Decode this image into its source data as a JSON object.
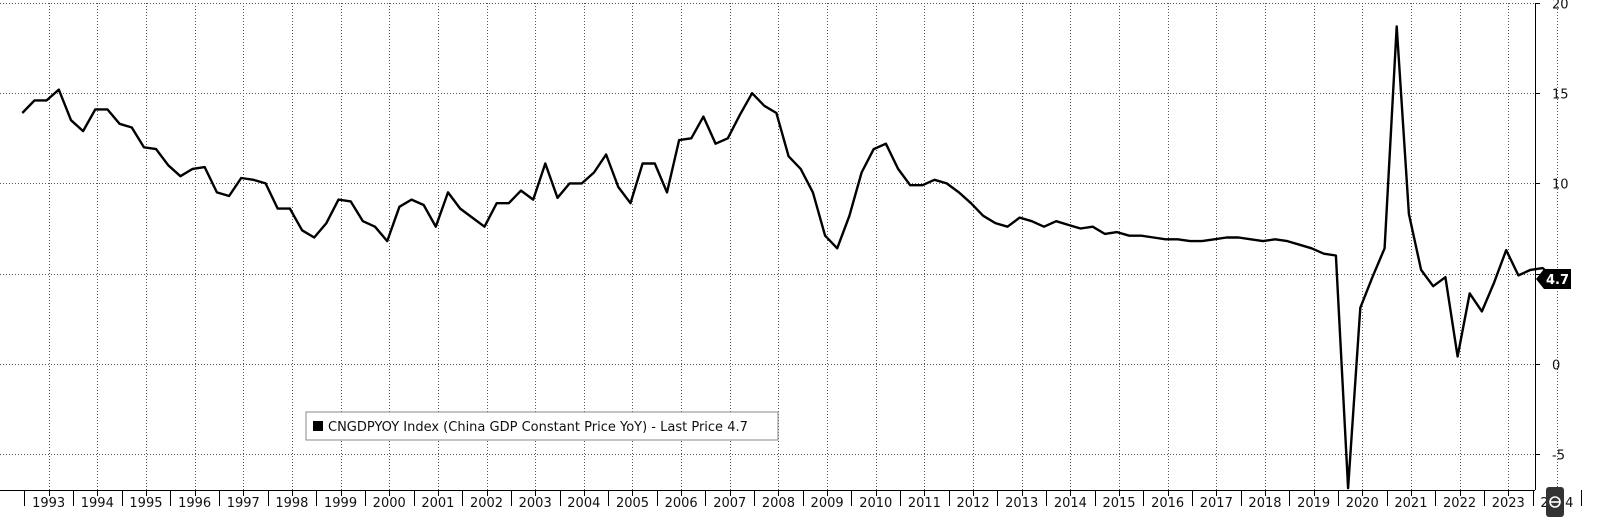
{
  "chart_data": {
    "type": "line",
    "legend": "CNGDPYOY Index (China GDP Constant Price YoY) - Last Price 4.7",
    "last_price_label": "4.7",
    "last_price": 4.7,
    "x_tick_labels": [
      "1993",
      "1994",
      "1995",
      "1996",
      "1997",
      "1998",
      "1999",
      "2000",
      "2001",
      "2002",
      "2003",
      "2004",
      "2005",
      "2006",
      "2007",
      "2008",
      "2009",
      "2010",
      "2011",
      "2012",
      "2013",
      "2014",
      "2015",
      "2016",
      "2017",
      "2018",
      "2019",
      "2020",
      "2021",
      "2022",
      "2023",
      "2024"
    ],
    "y_ticks": [
      20,
      15,
      10,
      5,
      0,
      -5
    ],
    "y_tick_labels": [
      "20",
      "15",
      "10",
      "",
      "0",
      "-5"
    ],
    "ylim": [
      -7,
      20
    ],
    "grid": true,
    "legend_position": "bottom-center",
    "line_color": "#000000",
    "series": [
      {
        "values": [
          [
            "1992-12",
            13.9
          ],
          [
            "1993-03",
            14.6
          ],
          [
            "1993-06",
            14.6
          ],
          [
            "1993-09",
            15.2
          ],
          [
            "1993-12",
            13.5
          ],
          [
            "1994-03",
            12.9
          ],
          [
            "1994-06",
            14.1
          ],
          [
            "1994-09",
            14.1
          ],
          [
            "1994-12",
            13.3
          ],
          [
            "1995-03",
            13.1
          ],
          [
            "1995-06",
            12.0
          ],
          [
            "1995-09",
            11.9
          ],
          [
            "1995-12",
            11.0
          ],
          [
            "1996-03",
            10.4
          ],
          [
            "1996-06",
            10.8
          ],
          [
            "1996-09",
            10.9
          ],
          [
            "1996-12",
            9.5
          ],
          [
            "1997-03",
            9.3
          ],
          [
            "1997-06",
            10.3
          ],
          [
            "1997-09",
            10.2
          ],
          [
            "1997-12",
            10.0
          ],
          [
            "1998-03",
            8.6
          ],
          [
            "1998-06",
            8.6
          ],
          [
            "1998-09",
            7.4
          ],
          [
            "1998-12",
            7.0
          ],
          [
            "1999-03",
            7.8
          ],
          [
            "1999-06",
            9.1
          ],
          [
            "1999-09",
            9.0
          ],
          [
            "1999-12",
            7.9
          ],
          [
            "2000-03",
            7.6
          ],
          [
            "2000-06",
            6.8
          ],
          [
            "2000-09",
            8.7
          ],
          [
            "2000-12",
            9.1
          ],
          [
            "2001-03",
            8.8
          ],
          [
            "2001-06",
            7.6
          ],
          [
            "2001-09",
            9.5
          ],
          [
            "2001-12",
            8.6
          ],
          [
            "2002-03",
            8.1
          ],
          [
            "2002-06",
            7.6
          ],
          [
            "2002-09",
            8.9
          ],
          [
            "2002-12",
            8.9
          ],
          [
            "2003-03",
            9.6
          ],
          [
            "2003-06",
            9.1
          ],
          [
            "2003-09",
            11.1
          ],
          [
            "2003-12",
            9.2
          ],
          [
            "2004-03",
            10.0
          ],
          [
            "2004-06",
            10.0
          ],
          [
            "2004-09",
            10.6
          ],
          [
            "2004-12",
            11.6
          ],
          [
            "2005-03",
            9.8
          ],
          [
            "2005-06",
            8.9
          ],
          [
            "2005-09",
            11.1
          ],
          [
            "2005-12",
            11.1
          ],
          [
            "2006-03",
            9.5
          ],
          [
            "2006-06",
            12.4
          ],
          [
            "2006-09",
            12.5
          ],
          [
            "2006-12",
            13.7
          ],
          [
            "2007-03",
            12.2
          ],
          [
            "2007-06",
            12.5
          ],
          [
            "2007-09",
            13.8
          ],
          [
            "2007-12",
            15.0
          ],
          [
            "2008-03",
            14.3
          ],
          [
            "2008-06",
            13.9
          ],
          [
            "2008-09",
            11.5
          ],
          [
            "2008-12",
            10.8
          ],
          [
            "2009-03",
            9.5
          ],
          [
            "2009-06",
            7.1
          ],
          [
            "2009-09",
            6.4
          ],
          [
            "2009-12",
            8.2
          ],
          [
            "2010-03",
            10.6
          ],
          [
            "2010-06",
            11.9
          ],
          [
            "2010-09",
            12.2
          ],
          [
            "2010-12",
            10.8
          ],
          [
            "2011-03",
            9.9
          ],
          [
            "2011-06",
            9.9
          ],
          [
            "2011-09",
            10.2
          ],
          [
            "2011-12",
            10.0
          ],
          [
            "2012-03",
            9.5
          ],
          [
            "2012-06",
            8.9
          ],
          [
            "2012-09",
            8.2
          ],
          [
            "2012-12",
            7.8
          ],
          [
            "2013-03",
            7.6
          ],
          [
            "2013-06",
            8.1
          ],
          [
            "2013-09",
            7.9
          ],
          [
            "2013-12",
            7.6
          ],
          [
            "2014-03",
            7.9
          ],
          [
            "2014-06",
            7.7
          ],
          [
            "2014-09",
            7.5
          ],
          [
            "2014-12",
            7.6
          ],
          [
            "2015-03",
            7.2
          ],
          [
            "2015-06",
            7.3
          ],
          [
            "2015-09",
            7.1
          ],
          [
            "2015-12",
            7.1
          ],
          [
            "2016-03",
            7.0
          ],
          [
            "2016-06",
            6.9
          ],
          [
            "2016-09",
            6.9
          ],
          [
            "2016-12",
            6.8
          ],
          [
            "2017-03",
            6.8
          ],
          [
            "2017-06",
            6.9
          ],
          [
            "2017-09",
            7.0
          ],
          [
            "2017-12",
            7.0
          ],
          [
            "2018-03",
            6.9
          ],
          [
            "2018-06",
            6.8
          ],
          [
            "2018-09",
            6.9
          ],
          [
            "2018-12",
            6.8
          ],
          [
            "2019-03",
            6.6
          ],
          [
            "2019-06",
            6.4
          ],
          [
            "2019-09",
            6.1
          ],
          [
            "2019-12",
            6.0
          ],
          [
            "2020-03",
            -6.9
          ],
          [
            "2020-06",
            3.1
          ],
          [
            "2020-09",
            4.8
          ],
          [
            "2020-12",
            6.4
          ],
          [
            "2021-03",
            18.7
          ],
          [
            "2021-06",
            8.3
          ],
          [
            "2021-09",
            5.2
          ],
          [
            "2021-12",
            4.3
          ],
          [
            "2022-03",
            4.8
          ],
          [
            "2022-06",
            0.4
          ],
          [
            "2022-09",
            3.9
          ],
          [
            "2022-12",
            2.9
          ],
          [
            "2023-03",
            4.5
          ],
          [
            "2023-06",
            6.3
          ],
          [
            "2023-09",
            4.9
          ],
          [
            "2023-12",
            5.2
          ],
          [
            "2024-03",
            5.3
          ],
          [
            "2024-06",
            4.7
          ]
        ]
      }
    ]
  }
}
